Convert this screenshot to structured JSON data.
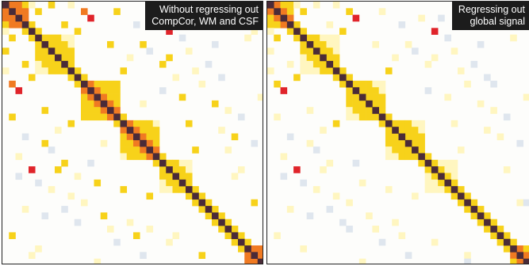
{
  "chart_data": [
    {
      "type": "heatmap",
      "title": "Without regressing out CompCor, WM and CSF",
      "title_lines": [
        "Without regressing out",
        "CompCor, WM and CSF"
      ],
      "xlabel": "",
      "ylabel": "",
      "n_regions": 40,
      "diagonal_color": "#4a2b38",
      "colormap": {
        "neutral": "#ffffff",
        "weak_negative": "#dfe6ee",
        "weak_positive": "#fff6c0",
        "positive": "#f7d21a",
        "strong_positive": "#f07a22",
        "very_strong_positive": "#e0242a"
      },
      "clusters": [
        [
          0,
          3,
          0.8
        ],
        [
          5,
          10,
          0.62
        ],
        [
          12,
          17,
          0.75
        ],
        [
          18,
          23,
          0.72
        ],
        [
          24,
          28,
          0.58
        ],
        [
          37,
          39,
          0.82
        ]
      ],
      "cells": [
        [
          1,
          12,
          0.7
        ],
        [
          12,
          1,
          0.7
        ],
        [
          0,
          7,
          0.45
        ],
        [
          7,
          0,
          0.45
        ],
        [
          3,
          9,
          0.5
        ],
        [
          9,
          3,
          0.5
        ],
        [
          4,
          11,
          0.55
        ],
        [
          11,
          4,
          0.55
        ],
        [
          2,
          13,
          0.95
        ],
        [
          13,
          2,
          0.95
        ],
        [
          10,
          18,
          0.65
        ],
        [
          18,
          10,
          0.65
        ],
        [
          6,
          21,
          0.5
        ],
        [
          21,
          6,
          0.5
        ],
        [
          15,
          32,
          0.45
        ],
        [
          32,
          15,
          0.45
        ],
        [
          1,
          35,
          0.45
        ],
        [
          35,
          1,
          0.45
        ],
        [
          20,
          35,
          0.5
        ],
        [
          35,
          20,
          0.5
        ],
        [
          8,
          25,
          0.5
        ],
        [
          25,
          8,
          0.5
        ],
        [
          14,
          27,
          0.45
        ],
        [
          27,
          14,
          0.45
        ],
        [
          4,
          25,
          0.9
        ],
        [
          25,
          4,
          0.9
        ],
        [
          9,
          24,
          0.5
        ],
        [
          24,
          9,
          0.5
        ],
        [
          30,
          38,
          0.5
        ],
        [
          38,
          30,
          0.5
        ],
        [
          1,
          5,
          0.55
        ],
        [
          5,
          1,
          0.55
        ],
        [
          1,
          17,
          0.45
        ],
        [
          17,
          1,
          0.45
        ],
        [
          22,
          29,
          0.5
        ],
        [
          29,
          22,
          0.5
        ],
        [
          0,
          4,
          0.4
        ],
        [
          4,
          0,
          0.4
        ],
        [
          18,
          28,
          0.45
        ],
        [
          28,
          18,
          0.45
        ],
        [
          6,
          16,
          0.45
        ],
        [
          16,
          6,
          0.45
        ],
        [
          3,
          20,
          -0.3
        ],
        [
          20,
          3,
          -0.3
        ],
        [
          5,
          27,
          -0.3
        ],
        [
          27,
          5,
          -0.3
        ],
        [
          11,
          33,
          -0.3
        ],
        [
          33,
          11,
          -0.3
        ],
        [
          2,
          26,
          -0.3
        ],
        [
          26,
          2,
          -0.3
        ],
        [
          17,
          36,
          -0.3
        ],
        [
          36,
          17,
          -0.3
        ],
        [
          9,
          31,
          -0.3
        ],
        [
          31,
          9,
          -0.3
        ],
        [
          13,
          24,
          -0.3
        ],
        [
          24,
          13,
          -0.3
        ],
        [
          7,
          22,
          -0.3
        ],
        [
          22,
          7,
          -0.3
        ],
        [
          21,
          38,
          -0.3
        ],
        [
          38,
          21,
          -0.3
        ],
        [
          6,
          32,
          -0.3
        ],
        [
          32,
          6,
          -0.3
        ],
        [
          0,
          10,
          0.3
        ],
        [
          10,
          0,
          0.3
        ],
        [
          8,
          19,
          0.3
        ],
        [
          19,
          8,
          0.3
        ],
        [
          12,
          30,
          0.3
        ],
        [
          30,
          12,
          0.3
        ],
        [
          16,
          34,
          0.3
        ],
        [
          34,
          16,
          0.3
        ],
        [
          2,
          23,
          0.3
        ],
        [
          23,
          2,
          0.3
        ],
        [
          5,
          37,
          0.3
        ],
        [
          37,
          5,
          0.3
        ],
        [
          19,
          33,
          0.3
        ],
        [
          33,
          19,
          0.3
        ],
        [
          10,
          29,
          0.3
        ],
        [
          29,
          10,
          0.3
        ],
        [
          25,
          36,
          0.3
        ],
        [
          36,
          25,
          0.3
        ],
        [
          14,
          39,
          0.3
        ],
        [
          39,
          14,
          0.3
        ],
        [
          3,
          31,
          0.3
        ],
        [
          31,
          3,
          0.3
        ],
        [
          7,
          28,
          0.3
        ],
        [
          28,
          7,
          0.3
        ],
        [
          22,
          34,
          0.3
        ],
        [
          34,
          22,
          0.3
        ],
        [
          11,
          26,
          0.3
        ],
        [
          26,
          11,
          0.3
        ],
        [
          15,
          21,
          0.3
        ],
        [
          21,
          15,
          0.3
        ],
        [
          26,
          35,
          0.3
        ],
        [
          35,
          26,
          0.3
        ],
        [
          4,
          38,
          0.3
        ],
        [
          38,
          4,
          0.3
        ]
      ]
    },
    {
      "type": "heatmap",
      "title": "Regressing out global signal",
      "title_lines": [
        "Regressing out",
        "global signal"
      ],
      "xlabel": "",
      "ylabel": "",
      "n_regions": 40,
      "diagonal_color": "#4a2b38",
      "colormap": {
        "neutral": "#ffffff",
        "weak_negative": "#dfe6ee",
        "weak_positive": "#fff6c0",
        "positive": "#f7d21a",
        "strong_positive": "#f07a22",
        "very_strong_positive": "#e0242a"
      },
      "clusters": [
        [
          0,
          3,
          0.7
        ],
        [
          5,
          10,
          0.52
        ],
        [
          12,
          17,
          0.65
        ],
        [
          18,
          23,
          0.62
        ],
        [
          24,
          28,
          0.45
        ],
        [
          37,
          39,
          0.72
        ]
      ],
      "cells": [
        [
          1,
          12,
          0.6
        ],
        [
          12,
          1,
          0.6
        ],
        [
          0,
          7,
          0.35
        ],
        [
          7,
          0,
          0.35
        ],
        [
          3,
          9,
          0.4
        ],
        [
          9,
          3,
          0.4
        ],
        [
          4,
          11,
          0.45
        ],
        [
          11,
          4,
          0.45
        ],
        [
          2,
          13,
          0.9
        ],
        [
          13,
          2,
          0.9
        ],
        [
          10,
          18,
          0.55
        ],
        [
          18,
          10,
          0.55
        ],
        [
          6,
          21,
          0.4
        ],
        [
          21,
          6,
          0.4
        ],
        [
          15,
          32,
          0.35
        ],
        [
          32,
          15,
          0.35
        ],
        [
          1,
          35,
          0.35
        ],
        [
          35,
          1,
          0.35
        ],
        [
          20,
          35,
          0.4
        ],
        [
          35,
          20,
          0.4
        ],
        [
          8,
          25,
          0.4
        ],
        [
          25,
          8,
          0.4
        ],
        [
          14,
          27,
          0.35
        ],
        [
          27,
          14,
          0.35
        ],
        [
          4,
          25,
          0.88
        ],
        [
          25,
          4,
          0.88
        ],
        [
          9,
          24,
          0.4
        ],
        [
          24,
          9,
          0.4
        ],
        [
          30,
          38,
          0.4
        ],
        [
          38,
          30,
          0.4
        ],
        [
          1,
          5,
          0.45
        ],
        [
          5,
          1,
          0.45
        ],
        [
          1,
          17,
          0.35
        ],
        [
          17,
          1,
          0.35
        ],
        [
          22,
          29,
          0.4
        ],
        [
          29,
          22,
          0.4
        ],
        [
          0,
          4,
          0.3
        ],
        [
          4,
          0,
          0.3
        ],
        [
          18,
          28,
          0.35
        ],
        [
          28,
          18,
          0.35
        ],
        [
          6,
          16,
          0.35
        ],
        [
          16,
          6,
          0.35
        ],
        [
          3,
          20,
          -0.35
        ],
        [
          20,
          3,
          -0.35
        ],
        [
          5,
          27,
          -0.35
        ],
        [
          27,
          5,
          -0.35
        ],
        [
          11,
          33,
          -0.35
        ],
        [
          33,
          11,
          -0.35
        ],
        [
          2,
          26,
          -0.35
        ],
        [
          26,
          2,
          -0.35
        ],
        [
          17,
          36,
          -0.35
        ],
        [
          36,
          17,
          -0.35
        ],
        [
          9,
          31,
          -0.35
        ],
        [
          31,
          9,
          -0.35
        ],
        [
          13,
          24,
          -0.35
        ],
        [
          24,
          13,
          -0.35
        ],
        [
          7,
          22,
          -0.35
        ],
        [
          22,
          7,
          -0.35
        ],
        [
          21,
          38,
          -0.35
        ],
        [
          38,
          21,
          -0.35
        ],
        [
          6,
          32,
          -0.35
        ],
        [
          32,
          6,
          -0.35
        ],
        [
          30,
          39,
          -0.35
        ],
        [
          39,
          30,
          -0.35
        ],
        [
          12,
          34,
          -0.35
        ],
        [
          34,
          12,
          -0.35
        ],
        [
          0,
          10,
          0.25
        ],
        [
          10,
          0,
          0.25
        ],
        [
          8,
          19,
          0.25
        ],
        [
          19,
          8,
          0.25
        ],
        [
          12,
          30,
          0.25
        ],
        [
          30,
          12,
          0.25
        ],
        [
          16,
          34,
          0.25
        ],
        [
          34,
          16,
          0.25
        ],
        [
          2,
          23,
          0.25
        ],
        [
          23,
          2,
          0.25
        ],
        [
          5,
          37,
          0.25
        ],
        [
          37,
          5,
          0.25
        ],
        [
          19,
          33,
          0.25
        ],
        [
          33,
          19,
          0.25
        ],
        [
          10,
          29,
          0.25
        ],
        [
          29,
          10,
          0.25
        ],
        [
          25,
          36,
          0.25
        ],
        [
          36,
          25,
          0.25
        ],
        [
          14,
          39,
          0.25
        ],
        [
          39,
          14,
          0.25
        ],
        [
          3,
          31,
          0.25
        ],
        [
          31,
          3,
          0.25
        ],
        [
          7,
          28,
          0.25
        ],
        [
          28,
          7,
          0.25
        ]
      ]
    }
  ]
}
